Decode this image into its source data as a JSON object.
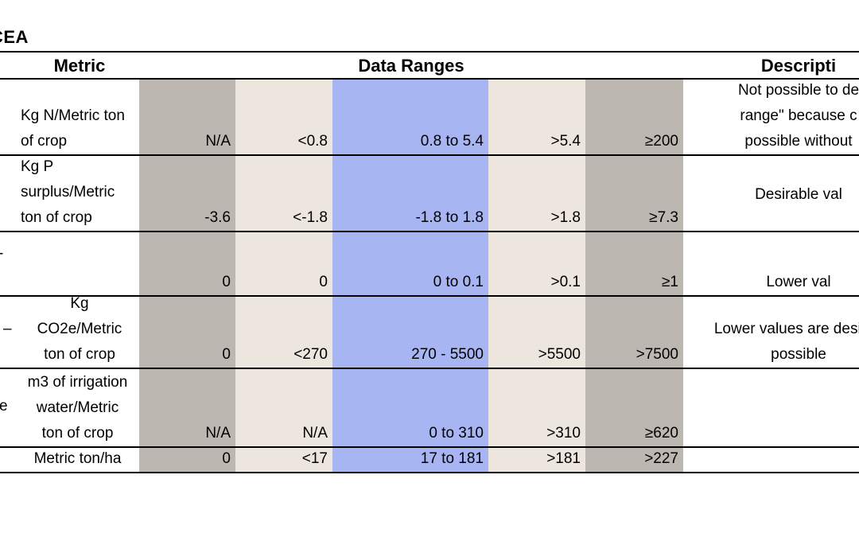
{
  "title": "CEA",
  "headers": {
    "metric": "Metric",
    "ranges": "Data Ranges",
    "description": "Descripti"
  },
  "colors": {
    "gray": "#bcb7b0",
    "beige": "#ede6df",
    "blue": "#a7b5f2"
  },
  "rows": [
    {
      "label_fragment": "",
      "metric": [
        "Kg N/Metric ton",
        "of crop"
      ],
      "values": [
        "N/A",
        "<0.8",
        "0.8 to 5.4",
        ">5.4",
        "≥200"
      ],
      "description": [
        "Not possible to de",
        "range\" because c",
        "possible without"
      ]
    },
    {
      "label_fragment": "",
      "metric": [
        "Kg P",
        "surplus/Metric",
        "ton of crop"
      ],
      "values": [
        "-3.6",
        "<-1.8",
        "-1.8 to 1.8",
        ">1.8",
        "≥7.3"
      ],
      "description": [
        "Desirable val"
      ]
    },
    {
      "label_fragment": "-",
      "metric": [],
      "values": [
        "0",
        "0",
        "0 to 0.1",
        ">0.1",
        "≥1"
      ],
      "description": [
        "Lower val"
      ]
    },
    {
      "label_fragment": "–",
      "metric": [
        "Kg",
        "CO2e/Metric",
        "ton of crop"
      ],
      "values": [
        "0",
        "<270",
        "270 - 5500",
        ">5500",
        ">7500"
      ],
      "description": [
        "Lower values are desirab",
        "possible"
      ]
    },
    {
      "label_fragment": "e",
      "metric": [
        "m3 of irrigation",
        "water/Metric",
        "ton of crop"
      ],
      "values": [
        "N/A",
        "N/A",
        "0 to 310",
        ">310",
        "≥620"
      ],
      "description": []
    },
    {
      "label_fragment": "",
      "metric": [
        "Metric ton/ha"
      ],
      "values": [
        "0",
        "<17",
        "17 to 181",
        ">181",
        ">227"
      ],
      "description": []
    }
  ]
}
